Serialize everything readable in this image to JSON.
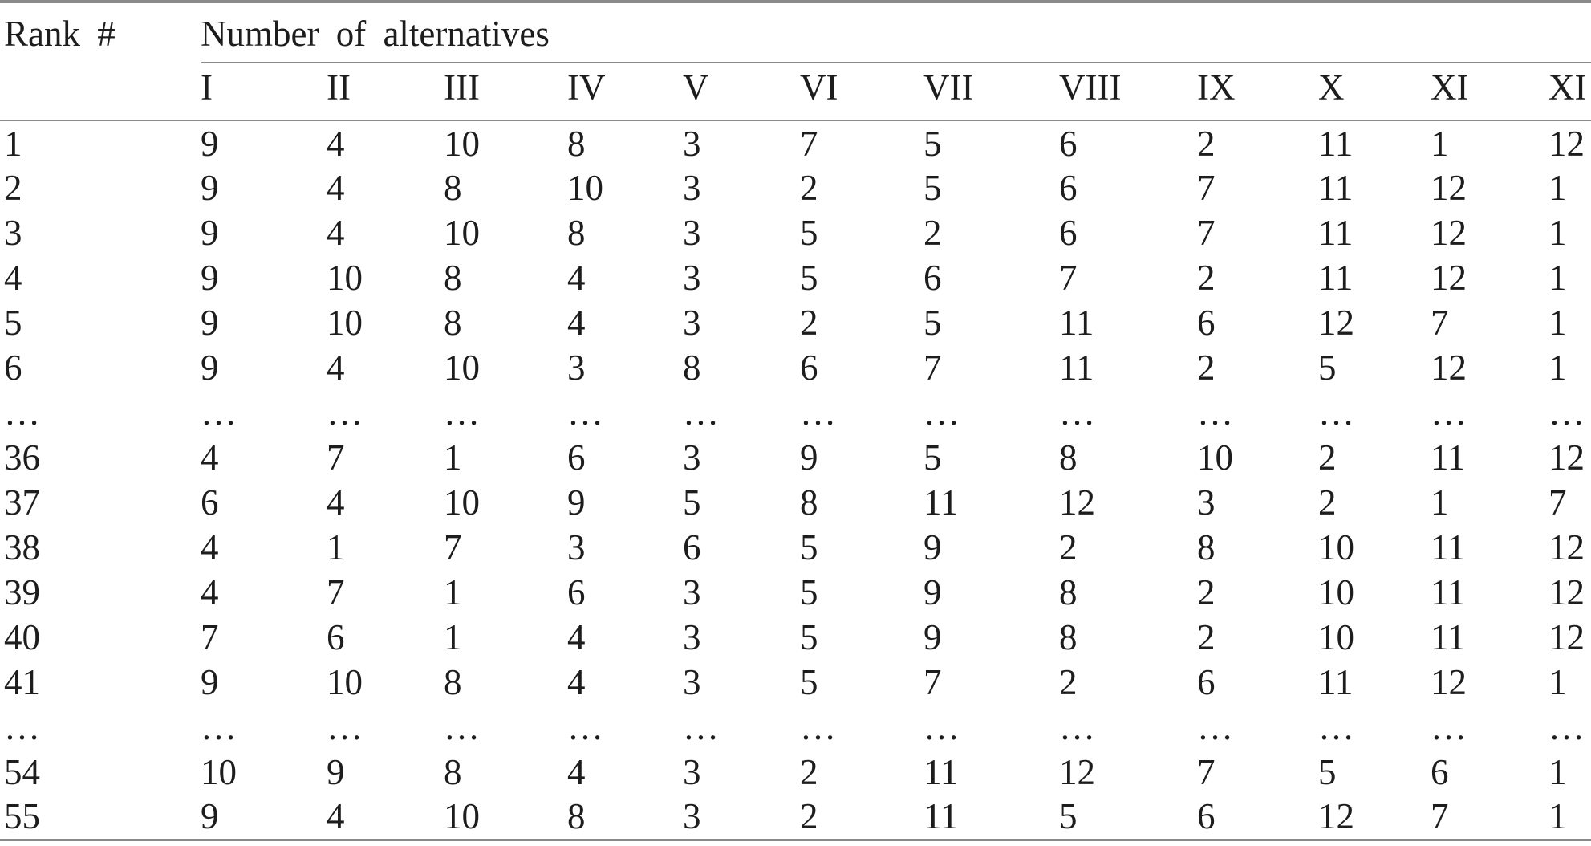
{
  "colors": {
    "background": "#ffffff",
    "text": "#1d1d1d",
    "rule": "#8a8a8a"
  },
  "table": {
    "corner_header": "Rank #",
    "group_header": "Number of alternatives",
    "column_headers": [
      "I",
      "II",
      "III",
      "IV",
      "V",
      "VI",
      "VII",
      "VIII",
      "IX",
      "X",
      "XI",
      "XI"
    ],
    "rows": [
      {
        "rank": "1",
        "values": [
          "9",
          "4",
          "10",
          "8",
          "3",
          "7",
          "5",
          "6",
          "2",
          "11",
          "1",
          "12"
        ]
      },
      {
        "rank": "2",
        "values": [
          "9",
          "4",
          "8",
          "10",
          "3",
          "2",
          "5",
          "6",
          "7",
          "11",
          "12",
          "1"
        ]
      },
      {
        "rank": "3",
        "values": [
          "9",
          "4",
          "10",
          "8",
          "3",
          "5",
          "2",
          "6",
          "7",
          "11",
          "12",
          "1"
        ]
      },
      {
        "rank": "4",
        "values": [
          "9",
          "10",
          "8",
          "4",
          "3",
          "5",
          "6",
          "7",
          "2",
          "11",
          "12",
          "1"
        ]
      },
      {
        "rank": "5",
        "values": [
          "9",
          "10",
          "8",
          "4",
          "3",
          "2",
          "5",
          "11",
          "6",
          "12",
          "7",
          "1"
        ]
      },
      {
        "rank": "6",
        "values": [
          "9",
          "4",
          "10",
          "3",
          "8",
          "6",
          "7",
          "11",
          "2",
          "5",
          "12",
          "1"
        ]
      },
      {
        "rank": "…",
        "values": [
          "…",
          "…",
          "…",
          "…",
          "…",
          "…",
          "…",
          "…",
          "…",
          "…",
          "…",
          "…"
        ]
      },
      {
        "rank": "36",
        "values": [
          "4",
          "7",
          "1",
          "6",
          "3",
          "9",
          "5",
          "8",
          "10",
          "2",
          "11",
          "12"
        ]
      },
      {
        "rank": "37",
        "values": [
          "6",
          "4",
          "10",
          "9",
          "5",
          "8",
          "11",
          "12",
          "3",
          "2",
          "1",
          "7"
        ]
      },
      {
        "rank": "38",
        "values": [
          "4",
          "1",
          "7",
          "3",
          "6",
          "5",
          "9",
          "2",
          "8",
          "10",
          "11",
          "12"
        ]
      },
      {
        "rank": "39",
        "values": [
          "4",
          "7",
          "1",
          "6",
          "3",
          "5",
          "9",
          "8",
          "2",
          "10",
          "11",
          "12"
        ]
      },
      {
        "rank": "40",
        "values": [
          "7",
          "6",
          "1",
          "4",
          "3",
          "5",
          "9",
          "8",
          "2",
          "10",
          "11",
          "12"
        ]
      },
      {
        "rank": "41",
        "values": [
          "9",
          "10",
          "8",
          "4",
          "3",
          "5",
          "7",
          "2",
          "6",
          "11",
          "12",
          "1"
        ]
      },
      {
        "rank": "…",
        "values": [
          "…",
          "…",
          "…",
          "…",
          "…",
          "…",
          "…",
          "…",
          "…",
          "…",
          "…",
          "…"
        ]
      },
      {
        "rank": "54",
        "values": [
          "10",
          "9",
          "8",
          "4",
          "3",
          "2",
          "11",
          "12",
          "7",
          "5",
          "6",
          "1"
        ]
      },
      {
        "rank": "55",
        "values": [
          "9",
          "4",
          "10",
          "8",
          "3",
          "2",
          "11",
          "5",
          "6",
          "12",
          "7",
          "1"
        ]
      }
    ]
  }
}
